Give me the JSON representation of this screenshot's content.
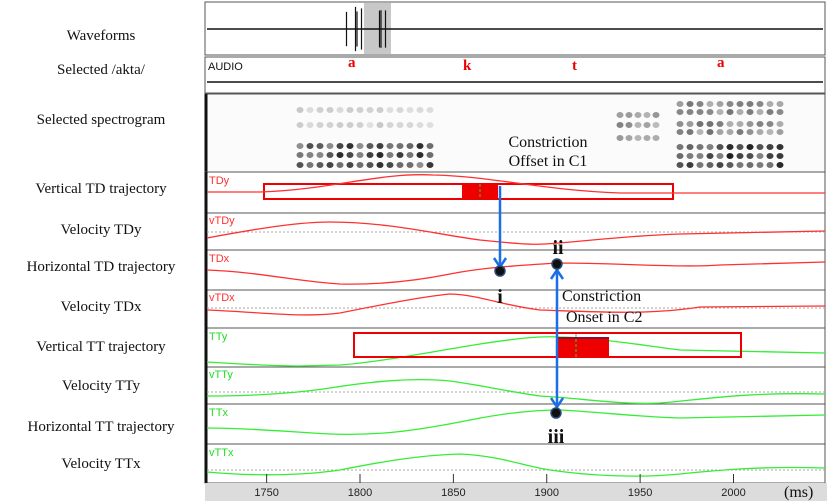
{
  "rows": [
    {
      "label": "Waveforms"
    },
    {
      "label": "Selected /akta/"
    },
    {
      "label": "Selected spectrogram"
    },
    {
      "label": "Vertical TD trajectory",
      "tag": "TDy"
    },
    {
      "label": "Velocity TDy",
      "tag": "vTDy"
    },
    {
      "label": "Horizontal TD trajectory",
      "tag": "TDx"
    },
    {
      "label": "Velocity TDx",
      "tag": "vTDx"
    },
    {
      "label": "Vertical TT trajectory",
      "tag": "TTy"
    },
    {
      "label": "Velocity TTy",
      "tag": "vTTy"
    },
    {
      "label": "Horizontal TT trajectory",
      "tag": "TTx"
    },
    {
      "label": "Velocity TTx",
      "tag": "vTTx"
    }
  ],
  "audio_tag": "AUDIO",
  "segments": [
    "a",
    "k",
    "t",
    "a"
  ],
  "annotations": {
    "offset_line1": "Constriction",
    "offset_line2": "Offset in C1",
    "onset_line1": "Constriction",
    "onset_line2": "Onset in C2",
    "point_i": "i",
    "point_ii": "ii",
    "point_iii": "iii"
  },
  "axis": {
    "ticks": [
      1750,
      1800,
      1850,
      1900,
      1950,
      2000
    ],
    "unit": "(ms)",
    "range_ms": [
      1717,
      2049
    ]
  },
  "colors": {
    "td": "#ff3030",
    "tt": "#33ee33",
    "arrow": "#1a6fe8",
    "box": "#ee0000"
  }
}
